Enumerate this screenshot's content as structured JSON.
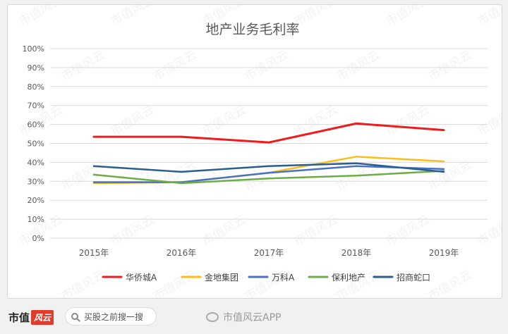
{
  "chart_data": {
    "type": "line",
    "title": "地产业务毛利率",
    "xlabel": "",
    "ylabel": "",
    "categories": [
      "2015年",
      "2016年",
      "2017年",
      "2018年",
      "2019年"
    ],
    "ylim": [
      0,
      100
    ],
    "yticks": [
      "0%",
      "10%",
      "20%",
      "30%",
      "40%",
      "50%",
      "60%",
      "70%",
      "80%",
      "90%",
      "100%"
    ],
    "grid": true,
    "legend_position": "bottom",
    "series": [
      {
        "name": "华侨城A",
        "color": "#ee1c1c",
        "values": [
          53.5,
          53.5,
          50.5,
          60.5,
          57
        ]
      },
      {
        "name": "金地集团",
        "color": "#fbbd1a",
        "values": [
          29,
          29.5,
          34.5,
          43,
          40.5
        ]
      },
      {
        "name": "万科A",
        "color": "#4a72c4",
        "values": [
          29.5,
          29.5,
          34.5,
          38,
          36.5
        ]
      },
      {
        "name": "保利地产",
        "color": "#6cae45",
        "values": [
          33.5,
          29,
          31.5,
          33,
          35.5
        ]
      },
      {
        "name": "招商蛇口",
        "color": "#2b5e91",
        "values": [
          38,
          35,
          38,
          39.5,
          35
        ]
      }
    ]
  },
  "watermark": "市值风云",
  "footer": {
    "brand_text": "市值",
    "brand_mark": "风云",
    "search_text": "买股之前搜一搜",
    "app_label": "市值风云APP"
  }
}
